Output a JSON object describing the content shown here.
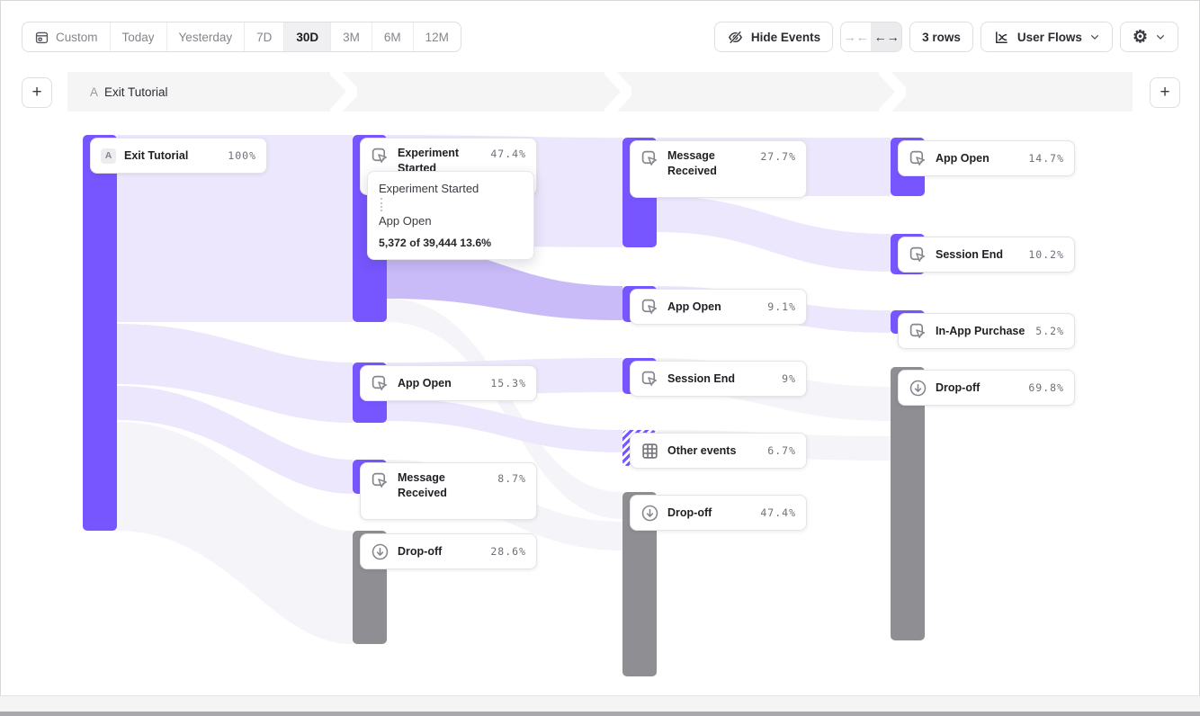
{
  "toolbar": {
    "date_ranges": [
      {
        "label": "Custom",
        "icon": "calendar-icon",
        "active": false
      },
      {
        "label": "Today",
        "active": false
      },
      {
        "label": "Yesterday",
        "active": false
      },
      {
        "label": "7D",
        "active": false
      },
      {
        "label": "30D",
        "active": true
      },
      {
        "label": "3M",
        "active": false
      },
      {
        "label": "6M",
        "active": false
      },
      {
        "label": "12M",
        "active": false
      }
    ],
    "hide_events_label": "Hide Events",
    "collapse_symbol": "→←",
    "expand_symbol": "←→",
    "rows_label": "3 rows",
    "view_label": "User Flows",
    "gear_symbol": "⚙"
  },
  "steps_header": {
    "step_a_prefix": "A",
    "step_a_label": "Exit Tutorial"
  },
  "tooltip": {
    "source": "Experiment Started",
    "target": "App Open",
    "stat": "5,372 of 39,444 13.6%"
  },
  "chart_data": {
    "type": "sankey",
    "steps": [
      {
        "nodes": [
          {
            "label": "Exit Tutorial",
            "value": "100%",
            "badge": "A",
            "kind": "event"
          }
        ]
      },
      {
        "nodes": [
          {
            "label": "Experiment Started",
            "value": "47.4%",
            "kind": "event",
            "wrap": true
          },
          {
            "label": "App Open",
            "value": "15.3%",
            "kind": "event"
          },
          {
            "label": "Message Received",
            "value": "8.7%",
            "kind": "event",
            "wrap": true
          },
          {
            "label": "Drop-off",
            "value": "28.6%",
            "kind": "dropoff"
          }
        ]
      },
      {
        "nodes": [
          {
            "label": "Message Received",
            "value": "27.7%",
            "kind": "event",
            "wrap": true
          },
          {
            "label": "App Open",
            "value": "9.1%",
            "kind": "event"
          },
          {
            "label": "Session End",
            "value": "9%",
            "kind": "event"
          },
          {
            "label": "Other events",
            "value": "6.7%",
            "kind": "other"
          },
          {
            "label": "Drop-off",
            "value": "47.4%",
            "kind": "dropoff"
          }
        ]
      },
      {
        "nodes": [
          {
            "label": "App Open",
            "value": "14.7%",
            "kind": "event"
          },
          {
            "label": "Session End",
            "value": "10.2%",
            "kind": "event"
          },
          {
            "label": "In-App Purchase",
            "value": "5.2%",
            "kind": "event"
          },
          {
            "label": "Drop-off",
            "value": "69.8%",
            "kind": "dropoff"
          }
        ]
      }
    ],
    "highlighted_link": {
      "source": "Experiment Started",
      "target": "App Open",
      "count": "5,372",
      "total": "39,444",
      "pct": "13.6%"
    }
  },
  "colors": {
    "purple": "#7856FF",
    "gray": "#8E8E93",
    "flow_light": "#ECE7FC",
    "flow_highlight": "#C9BBF8",
    "flow_gray": "#F5F4F8"
  }
}
